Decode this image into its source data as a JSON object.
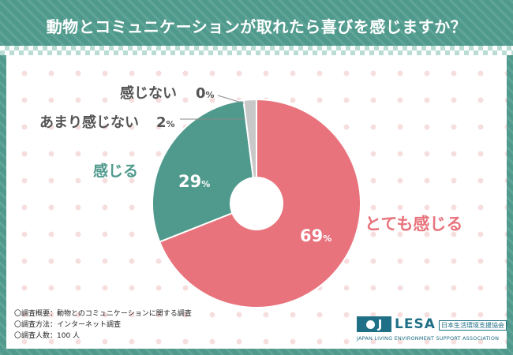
{
  "title": "動物とコミュニケーションが取れたら喜びを感じますか？",
  "chart_data": {
    "type": "pie",
    "title": "動物とコミュニケーションが取れたら喜びを感じますか？",
    "slices": [
      {
        "label": "とても感じる",
        "value": 69,
        "display": "69",
        "color": "#e8737c"
      },
      {
        "label": "感じる",
        "value": 29,
        "display": "29",
        "color": "#4f9a8c"
      },
      {
        "label": "あまり感じない",
        "value": 2,
        "display": "2",
        "color": "#c8c8c8"
      },
      {
        "label": "感じない",
        "value": 0,
        "display": "0",
        "color": "#9a9a9a"
      }
    ],
    "unit": "%",
    "donut": true
  },
  "notes": [
    "〇調査概要：動物とのコミュニケーションに関する調査",
    "〇調査方法：インターネット調査",
    "〇調査人数：100 人"
  ],
  "logo": {
    "box_letter": "J",
    "name": "LESA",
    "jp_name": "日本生活環境支援協会",
    "en_name": "JAPAN LIVING ENVIRONMENT SUPPORT ASSOCIATION"
  },
  "colors": {
    "frame": "#4f9a8c",
    "pink": "#e8737c",
    "teal": "#4f9a8c",
    "gray": "#c8c8c8",
    "label_gray": "#555555"
  }
}
